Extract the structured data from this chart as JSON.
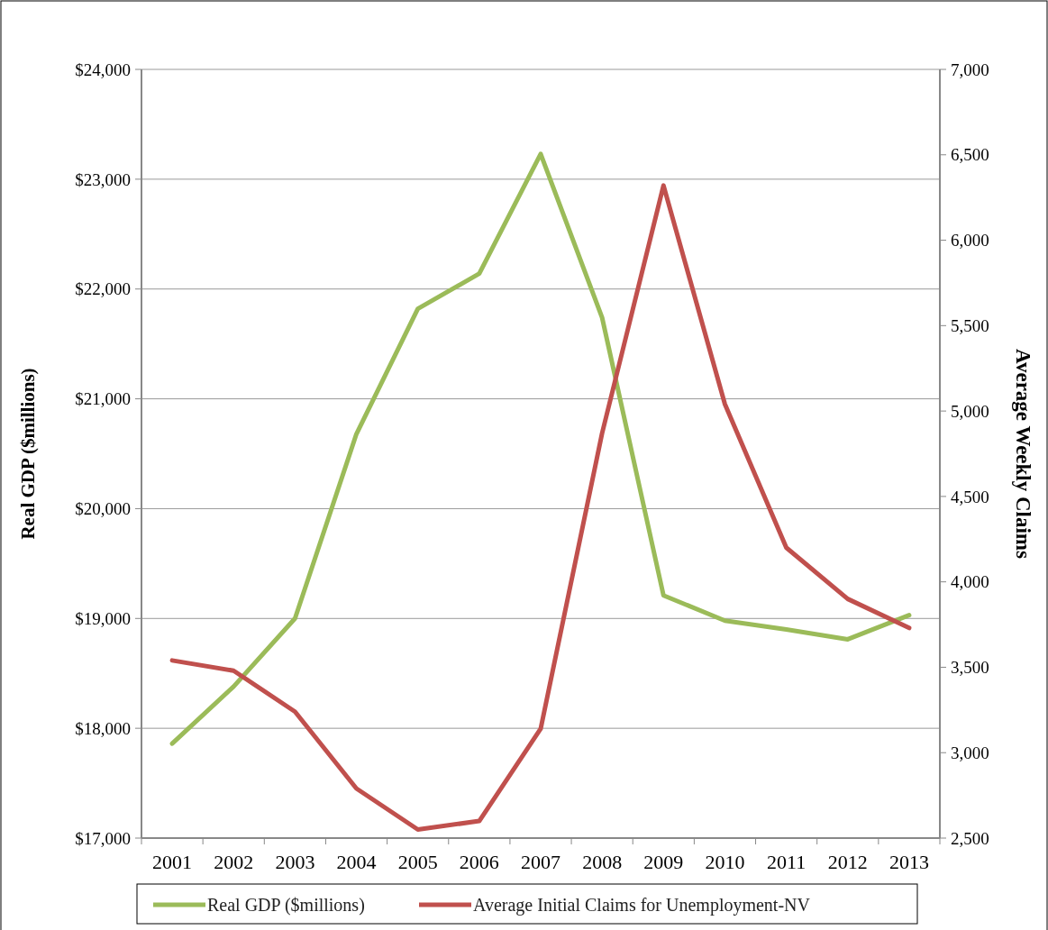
{
  "chart_data": {
    "type": "line",
    "ylabel": "Real GDP ($millions)",
    "y2label": "Average Weekly Claims",
    "categories": [
      "2001",
      "2002",
      "2003",
      "2004",
      "2005",
      "2006",
      "2007",
      "2008",
      "2009",
      "2010",
      "2011",
      "2012",
      "2013"
    ],
    "series": [
      {
        "name": "Real GDP ($millions)",
        "color": "#9bbb59",
        "values": [
          17860,
          18380,
          19000,
          20680,
          21820,
          22140,
          23230,
          21740,
          19210,
          18980,
          18900,
          18810,
          19030
        ]
      },
      {
        "name": "Average Initial Claims for Unemployment-NV",
        "color": "#c0504d",
        "axis": "y2",
        "values": [
          3540,
          3480,
          3240,
          2790,
          2550,
          2600,
          3140,
          4870,
          6320,
          5040,
          4200,
          3900,
          3730
        ]
      }
    ],
    "ylim": [
      17000,
      24000
    ],
    "yticks": [
      {
        "value": 17000,
        "label": "$17,000"
      },
      {
        "value": 18000,
        "label": "$18,000"
      },
      {
        "value": 19000,
        "label": "$19,000"
      },
      {
        "value": 20000,
        "label": "$20,000"
      },
      {
        "value": 21000,
        "label": "$21,000"
      },
      {
        "value": 22000,
        "label": "$22,000"
      },
      {
        "value": 23000,
        "label": "$23,000"
      },
      {
        "value": 24000,
        "label": "$24,000"
      }
    ],
    "y2lim": [
      2500,
      7000
    ],
    "y2ticks": [
      {
        "value": 2500,
        "label": "2,500"
      },
      {
        "value": 3000,
        "label": "3,000"
      },
      {
        "value": 3500,
        "label": "3,500"
      },
      {
        "value": 4000,
        "label": "4,000"
      },
      {
        "value": 4500,
        "label": "4,500"
      },
      {
        "value": 5000,
        "label": "5,000"
      },
      {
        "value": 5500,
        "label": "5,500"
      },
      {
        "value": 6000,
        "label": "6,000"
      },
      {
        "value": 6500,
        "label": "6,500"
      },
      {
        "value": 7000,
        "label": "7,000"
      }
    ],
    "grid": "y",
    "legend": "bottom",
    "marker": "none",
    "line_style": "solid"
  }
}
